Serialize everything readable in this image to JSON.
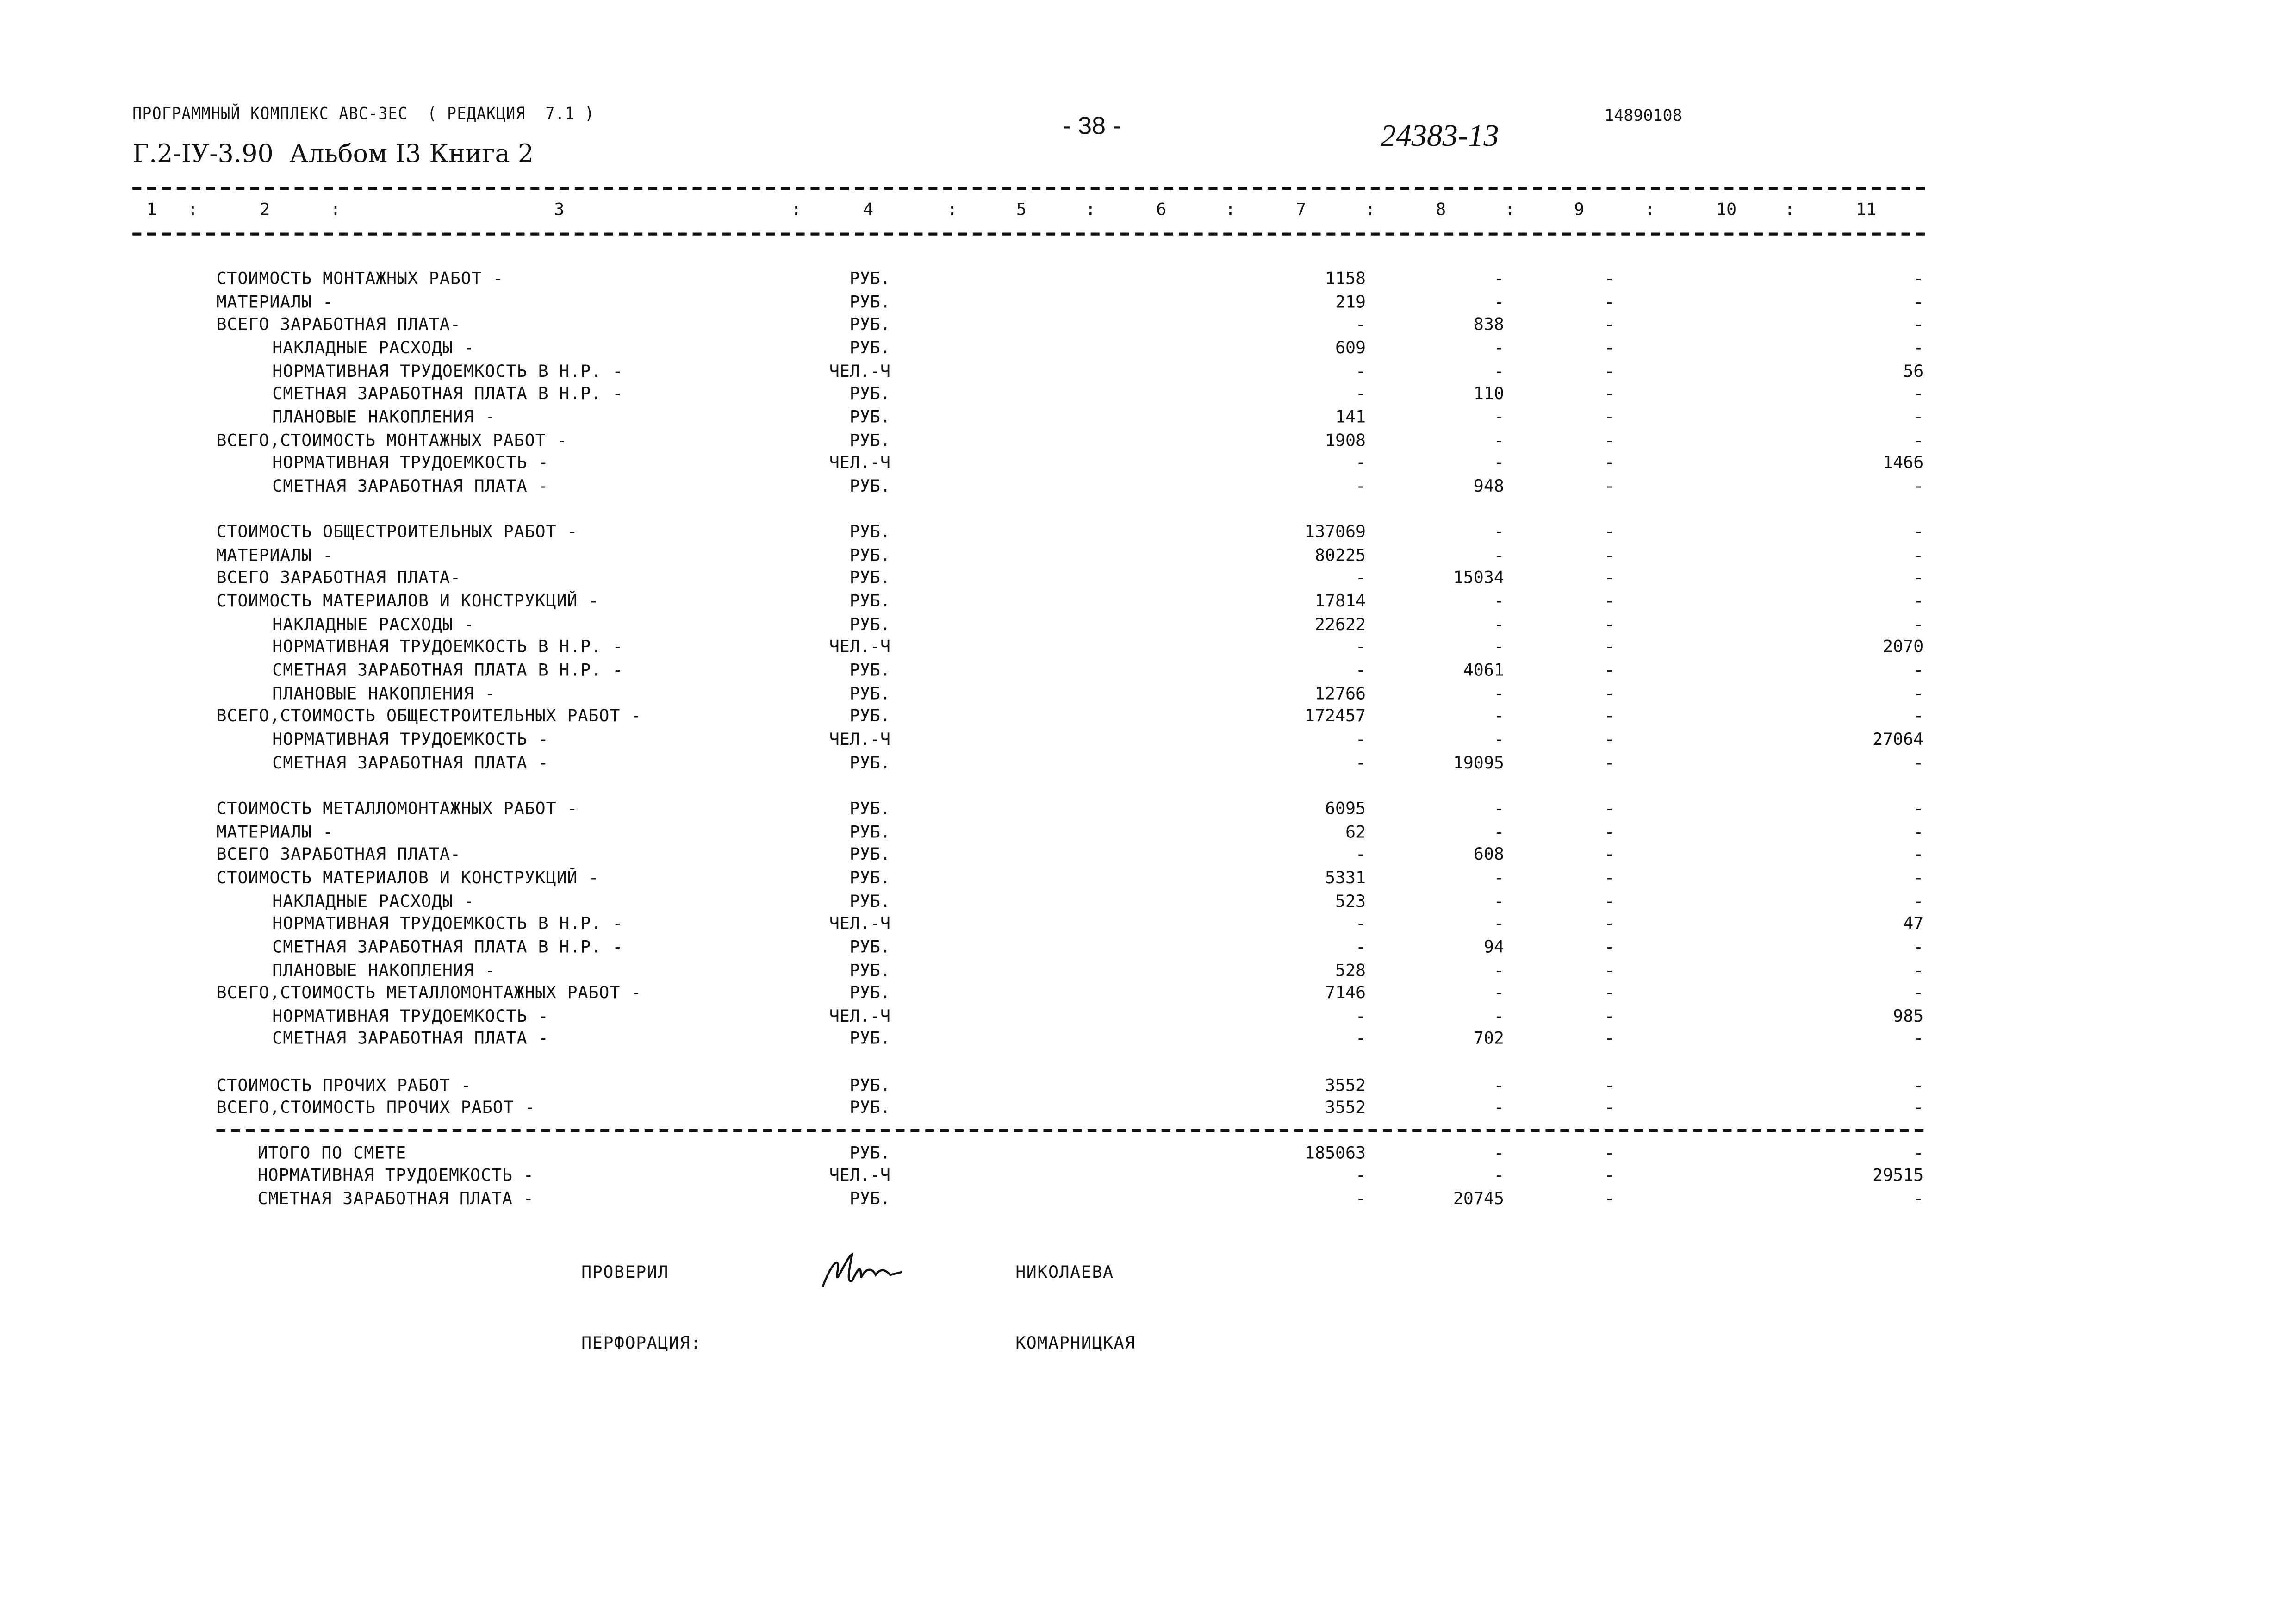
{
  "header": {
    "program": "ПРОГРАММНЫЙ КОМПЛЕКС АВС-ЗЕС  ( РЕДАКЦИЯ  7.1 )",
    "album": "Г.2-IУ-3.90  Альбом I3 Книга 2",
    "page_number": "- 38 -",
    "document_number": "24383-13",
    "code": "14890108"
  },
  "column_headers": [
    "1",
    "2",
    "3",
    "4",
    "5",
    "6",
    "7",
    "8",
    "9",
    "10",
    "11"
  ],
  "column_separator": ":",
  "sections": [
    {
      "rows": [
        {
          "label": "СТОИМОСТЬ МОНТАЖНЫХ РАБОТ -",
          "indent": false,
          "unit": "РУБ.",
          "c7": "1158",
          "c8": "-",
          "c9": "-",
          "c11": "-"
        },
        {
          "label": "МАТЕРИАЛЫ -",
          "indent": false,
          "unit": "РУБ.",
          "c7": "219",
          "c8": "-",
          "c9": "-",
          "c11": "-"
        },
        {
          "label": "ВСЕГО ЗАРАБОТНАЯ ПЛАТА-",
          "indent": false,
          "unit": "РУБ.",
          "c7": "-",
          "c8": "838",
          "c9": "-",
          "c11": "-"
        },
        {
          "label": "НАКЛАДНЫЕ РАСХОДЫ -",
          "indent": true,
          "unit": "РУБ.",
          "c7": "609",
          "c8": "-",
          "c9": "-",
          "c11": "-"
        },
        {
          "label": "НОРМАТИВНАЯ ТРУДОЕМКОСТЬ В Н.Р. -",
          "indent": true,
          "unit": "ЧЕЛ.-Ч",
          "c7": "-",
          "c8": "-",
          "c9": "-",
          "c11": "56"
        },
        {
          "label": "СМЕТНАЯ ЗАРАБОТНАЯ ПЛАТА В Н.Р. -",
          "indent": true,
          "unit": "РУБ.",
          "c7": "-",
          "c8": "110",
          "c9": "-",
          "c11": "-"
        },
        {
          "label": "ПЛАНОВЫЕ НАКОПЛЕНИЯ -",
          "indent": true,
          "unit": "РУБ.",
          "c7": "141",
          "c8": "-",
          "c9": "-",
          "c11": "-"
        },
        {
          "label": "ВСЕГО,СТОИМОСТЬ МОНТАЖНЫХ РАБОТ -",
          "indent": false,
          "unit": "РУБ.",
          "c7": "1908",
          "c8": "-",
          "c9": "-",
          "c11": "-"
        },
        {
          "label": "НОРМАТИВНАЯ ТРУДОЕМКОСТЬ -",
          "indent": true,
          "unit": "ЧЕЛ.-Ч",
          "c7": "-",
          "c8": "-",
          "c9": "-",
          "c11": "1466"
        },
        {
          "label": "СМЕТНАЯ ЗАРАБОТНАЯ ПЛАТА -",
          "indent": true,
          "unit": "РУБ.",
          "c7": "-",
          "c8": "948",
          "c9": "-",
          "c11": "-"
        }
      ]
    },
    {
      "rows": [
        {
          "label": "СТОИМОСТЬ ОБЩЕСТРОИТЕЛЬНЫХ РАБОТ -",
          "indent": false,
          "unit": "РУБ.",
          "c7": "137069",
          "c8": "-",
          "c9": "-",
          "c11": "-"
        },
        {
          "label": "МАТЕРИАЛЫ -",
          "indent": false,
          "unit": "РУБ.",
          "c7": "80225",
          "c8": "-",
          "c9": "-",
          "c11": "-"
        },
        {
          "label": "ВСЕГО ЗАРАБОТНАЯ ПЛАТА-",
          "indent": false,
          "unit": "РУБ.",
          "c7": "-",
          "c8": "15034",
          "c9": "-",
          "c11": "-"
        },
        {
          "label": "СТОИМОСТЬ МАТЕРИАЛОВ И КОНСТРУКЦИЙ -",
          "indent": false,
          "unit": "РУБ.",
          "c7": "17814",
          "c8": "-",
          "c9": "-",
          "c11": "-"
        },
        {
          "label": "НАКЛАДНЫЕ РАСХОДЫ -",
          "indent": true,
          "unit": "РУБ.",
          "c7": "22622",
          "c8": "-",
          "c9": "-",
          "c11": "-"
        },
        {
          "label": "НОРМАТИВНАЯ ТРУДОЕМКОСТЬ В Н.Р. -",
          "indent": true,
          "unit": "ЧЕЛ.-Ч",
          "c7": "-",
          "c8": "-",
          "c9": "-",
          "c11": "2070"
        },
        {
          "label": "СМЕТНАЯ ЗАРАБОТНАЯ ПЛАТА В Н.Р. -",
          "indent": true,
          "unit": "РУБ.",
          "c7": "-",
          "c8": "4061",
          "c9": "-",
          "c11": "-"
        },
        {
          "label": "ПЛАНОВЫЕ НАКОПЛЕНИЯ -",
          "indent": true,
          "unit": "РУБ.",
          "c7": "12766",
          "c8": "-",
          "c9": "-",
          "c11": "-"
        },
        {
          "label": "ВСЕГО,СТОИМОСТЬ ОБЩЕСТРОИТЕЛЬНЫХ РАБОТ -",
          "indent": false,
          "unit": "РУБ.",
          "c7": "172457",
          "c8": "-",
          "c9": "-",
          "c11": "-"
        },
        {
          "label": "НОРМАТИВНАЯ ТРУДОЕМКОСТЬ -",
          "indent": true,
          "unit": "ЧЕЛ.-Ч",
          "c7": "-",
          "c8": "-",
          "c9": "-",
          "c11": "27064"
        },
        {
          "label": "СМЕТНАЯ ЗАРАБОТНАЯ ПЛАТА -",
          "indent": true,
          "unit": "РУБ.",
          "c7": "-",
          "c8": "19095",
          "c9": "-",
          "c11": "-"
        }
      ]
    },
    {
      "rows": [
        {
          "label": "СТОИМОСТЬ МЕТАЛЛОМОНТАЖНЫХ РАБОТ -",
          "indent": false,
          "unit": "РУБ.",
          "c7": "6095",
          "c8": "-",
          "c9": "-",
          "c11": "-"
        },
        {
          "label": "МАТЕРИАЛЫ -",
          "indent": false,
          "unit": "РУБ.",
          "c7": "62",
          "c8": "-",
          "c9": "-",
          "c11": "-"
        },
        {
          "label": "ВСЕГО ЗАРАБОТНАЯ ПЛАТА-",
          "indent": false,
          "unit": "РУБ.",
          "c7": "-",
          "c8": "608",
          "c9": "-",
          "c11": "-"
        },
        {
          "label": "СТОИМОСТЬ МАТЕРИАЛОВ И КОНСТРУКЦИЙ -",
          "indent": false,
          "unit": "РУБ.",
          "c7": "5331",
          "c8": "-",
          "c9": "-",
          "c11": "-"
        },
        {
          "label": "НАКЛАДНЫЕ РАСХОДЫ -",
          "indent": true,
          "unit": "РУБ.",
          "c7": "523",
          "c8": "-",
          "c9": "-",
          "c11": "-"
        },
        {
          "label": "НОРМАТИВНАЯ ТРУДОЕМКОСТЬ В Н.Р. -",
          "indent": true,
          "unit": "ЧЕЛ.-Ч",
          "c7": "-",
          "c8": "-",
          "c9": "-",
          "c11": "47"
        },
        {
          "label": "СМЕТНАЯ ЗАРАБОТНАЯ ПЛАТА В Н.Р. -",
          "indent": true,
          "unit": "РУБ.",
          "c7": "-",
          "c8": "94",
          "c9": "-",
          "c11": "-"
        },
        {
          "label": "ПЛАНОВЫЕ НАКОПЛЕНИЯ -",
          "indent": true,
          "unit": "РУБ.",
          "c7": "528",
          "c8": "-",
          "c9": "-",
          "c11": "-"
        },
        {
          "label": "ВСЕГО,СТОИМОСТЬ МЕТАЛЛОМОНТАЖНЫХ РАБОТ -",
          "indent": false,
          "unit": "РУБ.",
          "c7": "7146",
          "c8": "-",
          "c9": "-",
          "c11": "-"
        },
        {
          "label": "НОРМАТИВНАЯ ТРУДОЕМКОСТЬ -",
          "indent": true,
          "unit": "ЧЕЛ.-Ч",
          "c7": "-",
          "c8": "-",
          "c9": "-",
          "c11": "985"
        },
        {
          "label": "СМЕТНАЯ ЗАРАБОТНАЯ ПЛАТА -",
          "indent": true,
          "unit": "РУБ.",
          "c7": "-",
          "c8": "702",
          "c9": "-",
          "c11": "-"
        }
      ]
    },
    {
      "rows": [
        {
          "label": "СТОИМОСТЬ ПРОЧИХ РАБОТ -",
          "indent": false,
          "unit": "РУБ.",
          "c7": "3552",
          "c8": "-",
          "c9": "-",
          "c11": "-"
        },
        {
          "label": "ВСЕГО,СТОИМОСТЬ ПРОЧИХ РАБОТ -",
          "indent": false,
          "unit": "РУБ.",
          "c7": "3552",
          "c8": "-",
          "c9": "-",
          "c11": "-"
        }
      ]
    },
    {
      "separator_before": true,
      "rows": [
        {
          "label": "ИТОГО ПО СМЕТЕ",
          "indent": "half",
          "unit": "РУБ.",
          "c7": "185063",
          "c8": "-",
          "c9": "-",
          "c11": "-"
        },
        {
          "label": "НОРМАТИВНАЯ ТРУДОЕМКОСТЬ -",
          "indent": "half",
          "unit": "ЧЕЛ.-Ч",
          "c7": "-",
          "c8": "-",
          "c9": "-",
          "c11": "29515"
        },
        {
          "label": "СМЕТНАЯ ЗАРАБОТНАЯ ПЛАТА -",
          "indent": "half",
          "unit": "РУБ.",
          "c7": "-",
          "c8": "20745",
          "c9": "-",
          "c11": "-"
        }
      ]
    }
  ],
  "footer": {
    "checked_label": "ПРОВЕРИЛ",
    "checked_name": "НИКОЛАЕВА",
    "perforation_label": "ПЕРФОРАЦИЯ:",
    "perforation_name": "КОМАРНИЦКАЯ"
  }
}
